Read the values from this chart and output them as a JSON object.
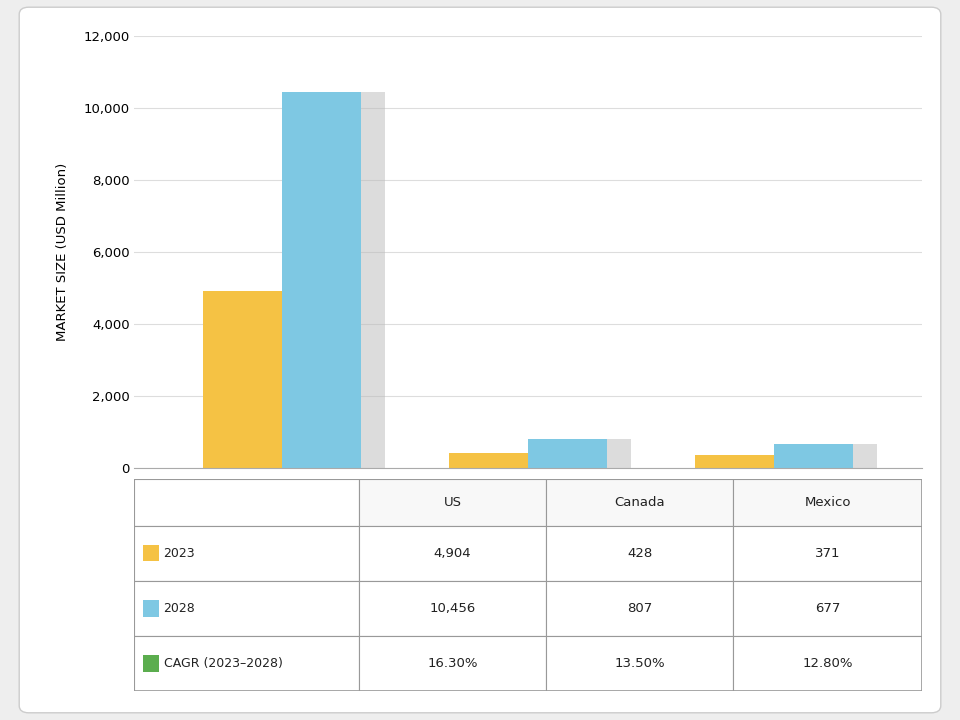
{
  "regions": [
    "US",
    "Canada",
    "Mexico"
  ],
  "values_2023": [
    4904,
    428,
    371
  ],
  "values_2028": [
    10456,
    807,
    677
  ],
  "cagr": [
    "16.30%",
    "13.50%",
    "12.80%"
  ],
  "color_2023": "#F5C244",
  "color_2028": "#7EC8E3",
  "color_cagr": "#5BAD4E",
  "ylabel": "MARKET SIZE (USD Million)",
  "ylim": [
    0,
    12000
  ],
  "yticks": [
    0,
    2000,
    4000,
    6000,
    8000,
    10000,
    12000
  ],
  "bar_width": 0.32,
  "shadow_color": "#BBBBBB",
  "background_color": "#FFFFFF",
  "outer_bg": "#EEEEEE",
  "grid_color": "#DDDDDD",
  "table_border_color": "#999999",
  "label_2023": "2023",
  "label_2028": "2028",
  "label_cagr": "CAGR (2023–2028)",
  "table_rows": [
    [
      "",
      "US",
      "Canada",
      "Mexico"
    ],
    [
      "2023",
      "4,904",
      "428",
      "371"
    ],
    [
      "2028",
      "10,456",
      "807",
      "677"
    ],
    [
      "CAGR (2023–2028)",
      "16.30%",
      "13.50%",
      "12.80%"
    ]
  ]
}
